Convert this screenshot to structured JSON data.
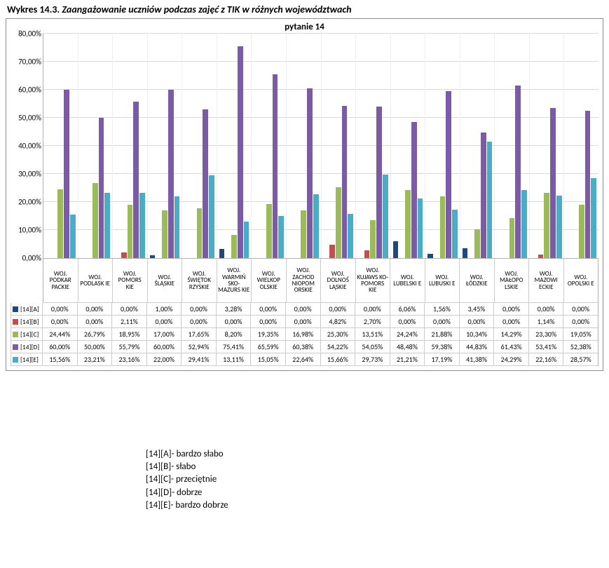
{
  "caption_prefix": "Wykres 14.3. ",
  "caption_italic": "Zaangażowanie  uczniów podczas zajęć z TIK w różnych województwach",
  "chart": {
    "type": "bar",
    "title": "pytanie 14",
    "title_fontsize": 13,
    "label_fontsize": 9,
    "value_fontsize": 10,
    "background_color": "#ffffff",
    "grid_color": "#d9d9d9",
    "axis_color": "#b0b0b0",
    "ylim": [
      0,
      80
    ],
    "ytick_step": 10,
    "y_tick_labels": [
      "0,00%",
      "10,00%",
      "20,00%",
      "30,00%",
      "40,00%",
      "50,00%",
      "60,00%",
      "70,00%",
      "80,00%"
    ],
    "categories": [
      "WOJ. PODKAR PACKIE",
      "WOJ. PODLASK IE",
      "WOJ. POMORS KIE",
      "WOJ. ŚLĄSKIE",
      "WOJ. ŚWIĘTOK RZYSKIE",
      "WOJ. WARMIŃ SKO- MAZURS KIE",
      "WOJ. WIELKOP OLSKIE",
      "WOJ. ZACHOD NIOPOM ORSKIE",
      "WOJ. DOLNOŚ LĄSKIE",
      "WOJ. KUJAWS KO- POMORS KIE",
      "WOJ. LUBELSKI E",
      "WOJ. LUBUSKI E",
      "WOJ. ŁÓDZKIE",
      "WOJ. MAŁOPO LSKIE",
      "WOJ. MAZOWI ECKIE",
      "WOJ. OPOLSKI E"
    ],
    "series": [
      {
        "key": "A",
        "label": "[14][A]",
        "color": "#1f497d",
        "values_raw": [
          0.0,
          0.0,
          0.0,
          1.0,
          0.0,
          3.28,
          0.0,
          0.0,
          0.0,
          0.0,
          6.06,
          1.56,
          3.45,
          0.0,
          0.0,
          0.0
        ],
        "values_text": [
          "0,00%",
          "0,00%",
          "0,00%",
          "1,00%",
          "0,00%",
          "3,28%",
          "0,00%",
          "0,00%",
          "0,00%",
          "0,00%",
          "6,06%",
          "1,56%",
          "3,45%",
          "0,00%",
          "0,00%",
          "0,00%"
        ]
      },
      {
        "key": "B",
        "label": "[14][B]",
        "color": "#c0504d",
        "values_raw": [
          0.0,
          0.0,
          2.11,
          0.0,
          0.0,
          0.0,
          0.0,
          0.0,
          4.82,
          2.7,
          0.0,
          0.0,
          0.0,
          0.0,
          1.14,
          0.0
        ],
        "values_text": [
          "0,00%",
          "0,00%",
          "2,11%",
          "0,00%",
          "0,00%",
          "0,00%",
          "0,00%",
          "0,00%",
          "4,82%",
          "2,70%",
          "0,00%",
          "0,00%",
          "0,00%",
          "0,00%",
          "1,14%",
          "0,00%"
        ]
      },
      {
        "key": "C",
        "label": "[14][C]",
        "color": "#9bbb59",
        "values_raw": [
          24.44,
          26.79,
          18.95,
          17.0,
          17.65,
          8.2,
          19.35,
          16.98,
          25.3,
          13.51,
          24.24,
          21.88,
          10.34,
          14.29,
          23.3,
          19.05
        ],
        "values_text": [
          "24,44%",
          "26,79%",
          "18,95%",
          "17,00%",
          "17,65%",
          "8,20%",
          "19,35%",
          "16,98%",
          "25,30%",
          "13,51%",
          "24,24%",
          "21,88%",
          "10,34%",
          "14,29%",
          "23,30%",
          "19,05%"
        ]
      },
      {
        "key": "D",
        "label": "[14][D]",
        "color": "#7b5aa6",
        "values_raw": [
          60.0,
          50.0,
          55.79,
          60.0,
          52.94,
          75.41,
          65.59,
          60.38,
          54.22,
          54.05,
          48.48,
          59.38,
          44.83,
          61.43,
          53.41,
          52.38
        ],
        "values_text": [
          "60,00%",
          "50,00%",
          "55,79%",
          "60,00%",
          "52,94%",
          "75,41%",
          "65,59%",
          "60,38%",
          "54,22%",
          "54,05%",
          "48,48%",
          "59,38%",
          "44,83%",
          "61,43%",
          "53,41%",
          "52,38%"
        ]
      },
      {
        "key": "E",
        "label": "[14][E]",
        "color": "#4bacc6",
        "values_raw": [
          15.56,
          23.21,
          23.16,
          22.0,
          29.41,
          13.11,
          15.05,
          22.64,
          15.66,
          29.73,
          21.21,
          17.19,
          41.38,
          24.29,
          22.16,
          28.57
        ],
        "values_text": [
          "15,56%",
          "23,21%",
          "23,16%",
          "22,00%",
          "29,41%",
          "13,11%",
          "15,05%",
          "22,64%",
          "15,66%",
          "29,73%",
          "21,21%",
          "17,19%",
          "41,38%",
          "24,29%",
          "22,16%",
          "28,57%"
        ]
      }
    ]
  },
  "legend_text": {
    "A": "[14][A]- bardzo słabo",
    "B": "[14][B]- słabo",
    "C": "[14][C]- przeciętnie",
    "D": "[14][D]- dobrze",
    "E": "[14][E]- bardzo dobrze"
  }
}
